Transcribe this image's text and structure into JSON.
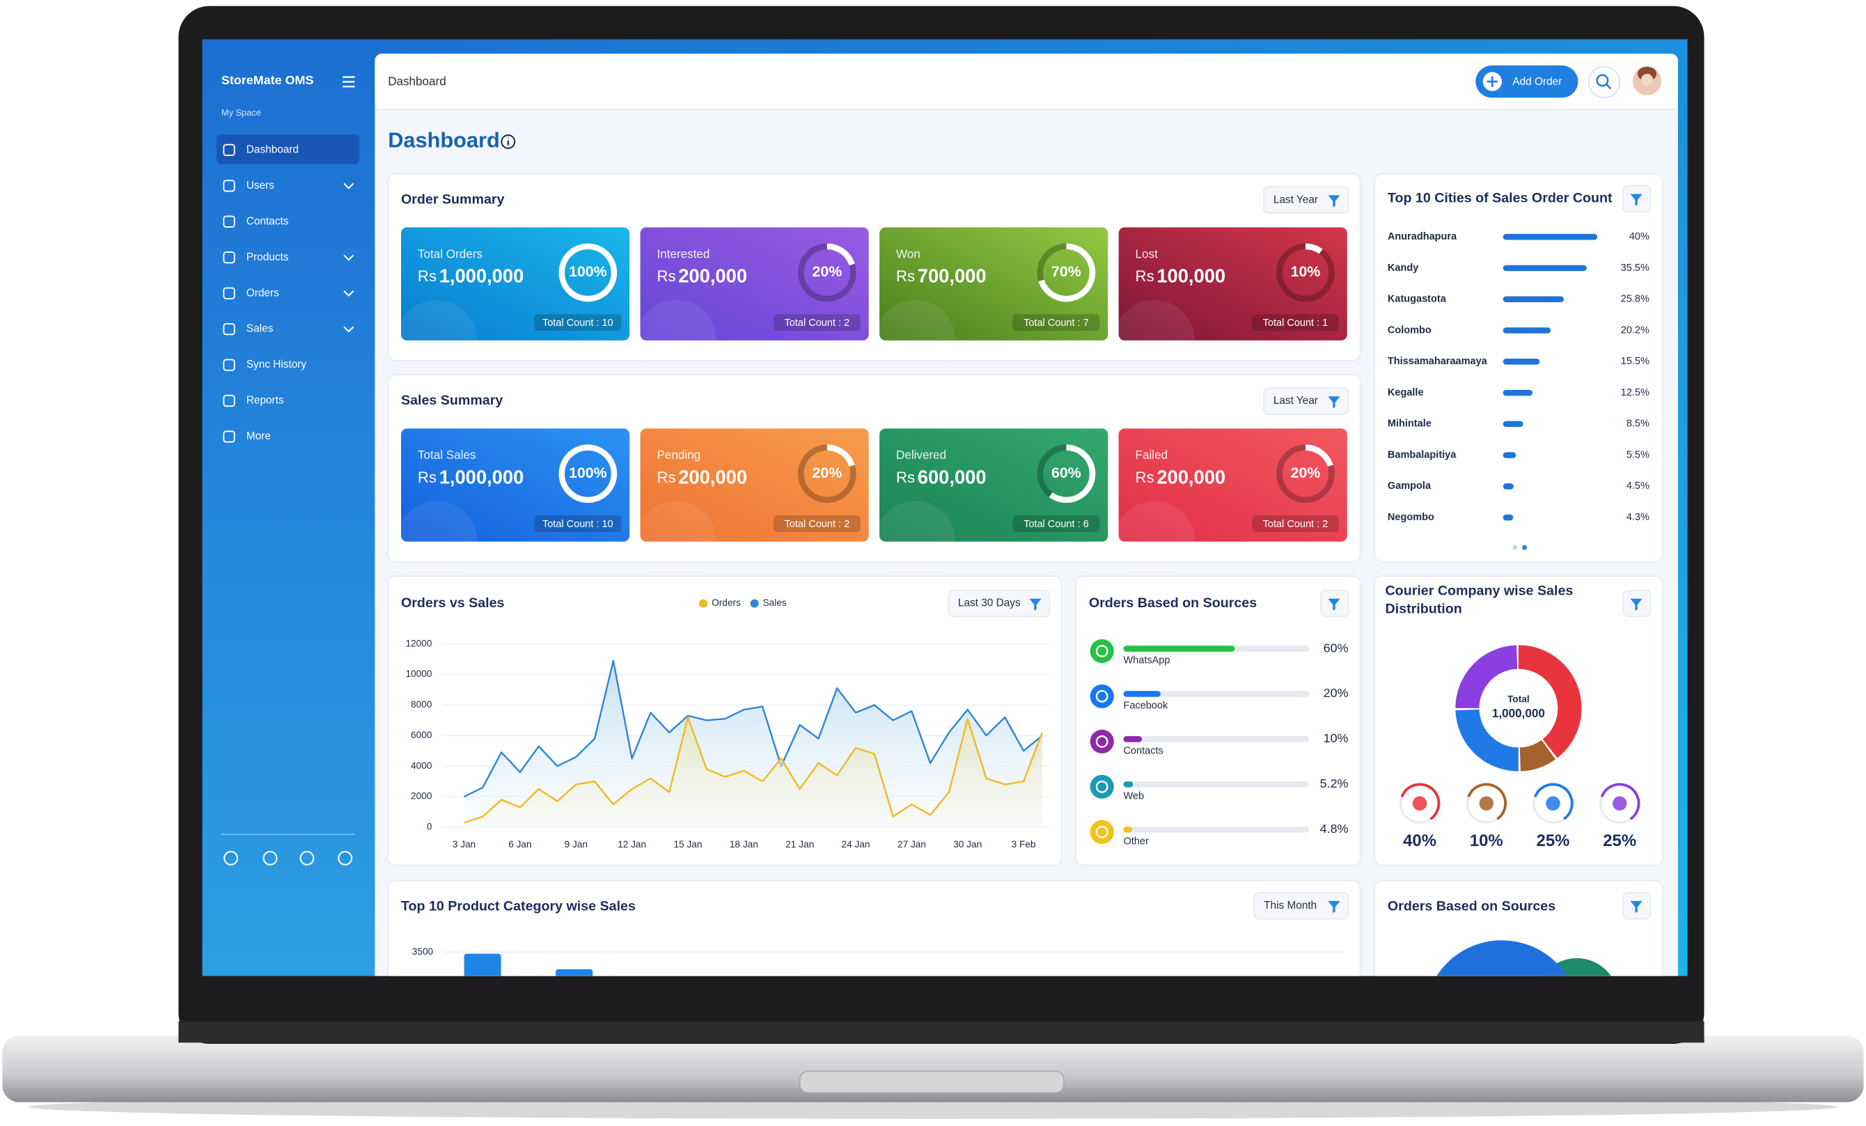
{
  "sidebar": {
    "brand": "StoreMate OMS",
    "section": "My Space",
    "menu": [
      "Dashboard",
      "Users",
      "Contacts",
      "Products",
      "Orders",
      "Sales",
      "Sync History",
      "Reports",
      "More"
    ]
  },
  "header": {
    "breadcrumb": "Dashboard",
    "button": "Add Order"
  },
  "page_title": "Dashboard",
  "order_summary": {
    "title": "Order Summary",
    "filter": "Last Year",
    "tiles": [
      {
        "label": "Total Orders",
        "currency": "Rs",
        "amount": "1,000,000",
        "percent": {
          "value": 100,
          "label": "100%"
        },
        "count": "Total Count : 10"
      },
      {
        "label": "Interested",
        "currency": "Rs",
        "amount": "200,000",
        "percent": {
          "value": 20,
          "label": "20%"
        },
        "count": "Total Count : 2"
      },
      {
        "label": "Won",
        "currency": "Rs",
        "amount": "700,000",
        "percent": {
          "value": 70,
          "label": "70%"
        },
        "count": "Total Count : 7"
      },
      {
        "label": "Lost",
        "currency": "Rs",
        "amount": "100,000",
        "percent": {
          "value": 10,
          "label": "10%"
        },
        "count": "Total Count : 1"
      }
    ]
  },
  "sales_summary": {
    "title": "Sales Summary",
    "filter": "Last Year",
    "tiles": [
      {
        "label": "Total Sales",
        "currency": "Rs",
        "amount": "1,000,000",
        "percent": {
          "value": 100,
          "label": "100%"
        },
        "count": "Total Count : 10"
      },
      {
        "label": "Pending",
        "currency": "Rs",
        "amount": "200,000",
        "percent": {
          "value": 20,
          "label": "20%"
        },
        "count": "Total Count : 2"
      },
      {
        "label": "Delivered",
        "currency": "Rs",
        "amount": "600,000",
        "percent": {
          "value": 60,
          "label": "60%"
        },
        "count": "Total Count : 6"
      },
      {
        "label": "Failed",
        "currency": "Rs",
        "amount": "200,000",
        "percent": {
          "value": 20,
          "label": "20%"
        },
        "count": "Total Count : 2"
      }
    ]
  },
  "top_cities": {
    "title": "Top 10 Cities of Sales Order Count",
    "rows": [
      {
        "name": "Anuradhapura",
        "value": 40,
        "label": "40%"
      },
      {
        "name": "Kandy",
        "value": 35.5,
        "label": "35.5%"
      },
      {
        "name": "Katugastota",
        "value": 25.8,
        "label": "25.8%"
      },
      {
        "name": "Colombo",
        "value": 20.2,
        "label": "20.2%"
      },
      {
        "name": "Thissamaharaamaya",
        "value": 15.5,
        "label": "15.5%"
      },
      {
        "name": "Kegalle",
        "value": 12.5,
        "label": "12.5%"
      },
      {
        "name": "Mihintale",
        "value": 8.5,
        "label": "8.5%"
      },
      {
        "name": "Bambalapitiya",
        "value": 5.5,
        "label": "5.5%"
      },
      {
        "name": "Gampola",
        "value": 4.5,
        "label": "4.5%"
      },
      {
        "name": "Negombo",
        "value": 4.3,
        "label": "4.3%"
      }
    ]
  },
  "orders_vs_sales": {
    "type": "line",
    "title": "Orders vs Sales",
    "filter": "Last 30 Days",
    "categories": [
      "3 Jan",
      null,
      null,
      "6 Jan",
      null,
      null,
      "9 Jan",
      null,
      null,
      "12 Jan",
      null,
      null,
      "15 Jan",
      null,
      null,
      "18 Jan",
      null,
      null,
      "21 Jan",
      null,
      null,
      "24 Jan",
      null,
      null,
      "27 Jan",
      null,
      null,
      "30 Jan",
      null,
      null,
      "3 Feb",
      null
    ],
    "series": [
      {
        "name": "Orders",
        "color": "#f2b824",
        "values": [
          300,
          700,
          1800,
          1300,
          2500,
          1700,
          2800,
          3000,
          1500,
          2500,
          3200,
          2300,
          7200,
          3800,
          3300,
          3700,
          3000,
          4500,
          2500,
          4200,
          3400,
          5200,
          4800,
          700,
          1500,
          800,
          2300,
          7100,
          3200,
          2800,
          3000,
          6200
        ]
      },
      {
        "name": "Sales",
        "color": "#2b86d6",
        "values": [
          2000,
          2600,
          4900,
          3600,
          5300,
          4000,
          4600,
          5800,
          10900,
          4500,
          7500,
          6200,
          7300,
          7000,
          7100,
          7700,
          7900,
          4000,
          6700,
          5800,
          9100,
          7500,
          8000,
          7000,
          7600,
          4200,
          6200,
          7700,
          6000,
          7200,
          5000,
          6000
        ]
      }
    ],
    "ylim": [
      0,
      12000
    ],
    "yticks": [
      0,
      2000,
      4000,
      6000,
      8000,
      10000,
      12000
    ]
  },
  "order_sources": {
    "title": "Orders Based on Sources",
    "rows": [
      {
        "name": "WhatsApp",
        "value": 60,
        "label": "60%",
        "color": "#25c244"
      },
      {
        "name": "Facebook",
        "value": 20,
        "label": "20%",
        "color": "#1877f2"
      },
      {
        "name": "Contacts",
        "value": 10,
        "label": "10%",
        "color": "#8e2aa8"
      },
      {
        "name": "Web",
        "value": 5.2,
        "label": "5.2%",
        "color": "#1b9ab8"
      },
      {
        "name": "Other",
        "value": 4.8,
        "label": "4.8%",
        "color": "#f2c318"
      }
    ]
  },
  "courier": {
    "title": "Courier Company wise Sales Distribution",
    "center_label": "Total",
    "center_value": "1,000,000",
    "segments": [
      {
        "value": 40,
        "label": "40%",
        "color": "#e8343c"
      },
      {
        "value": 10,
        "label": "10%",
        "color": "#a5622c"
      },
      {
        "value": 25,
        "label": "25%",
        "color": "#1f7ae8"
      },
      {
        "value": 25,
        "label": "25%",
        "color": "#8b3fe0"
      }
    ]
  },
  "product_category": {
    "title": "Top 10 Product Category wise Sales",
    "filter": "This Month",
    "yticks": [
      3500
    ],
    "values": [
      3450,
      2950
    ]
  },
  "order_sources_2": {
    "title": "Orders Based on Sources"
  }
}
